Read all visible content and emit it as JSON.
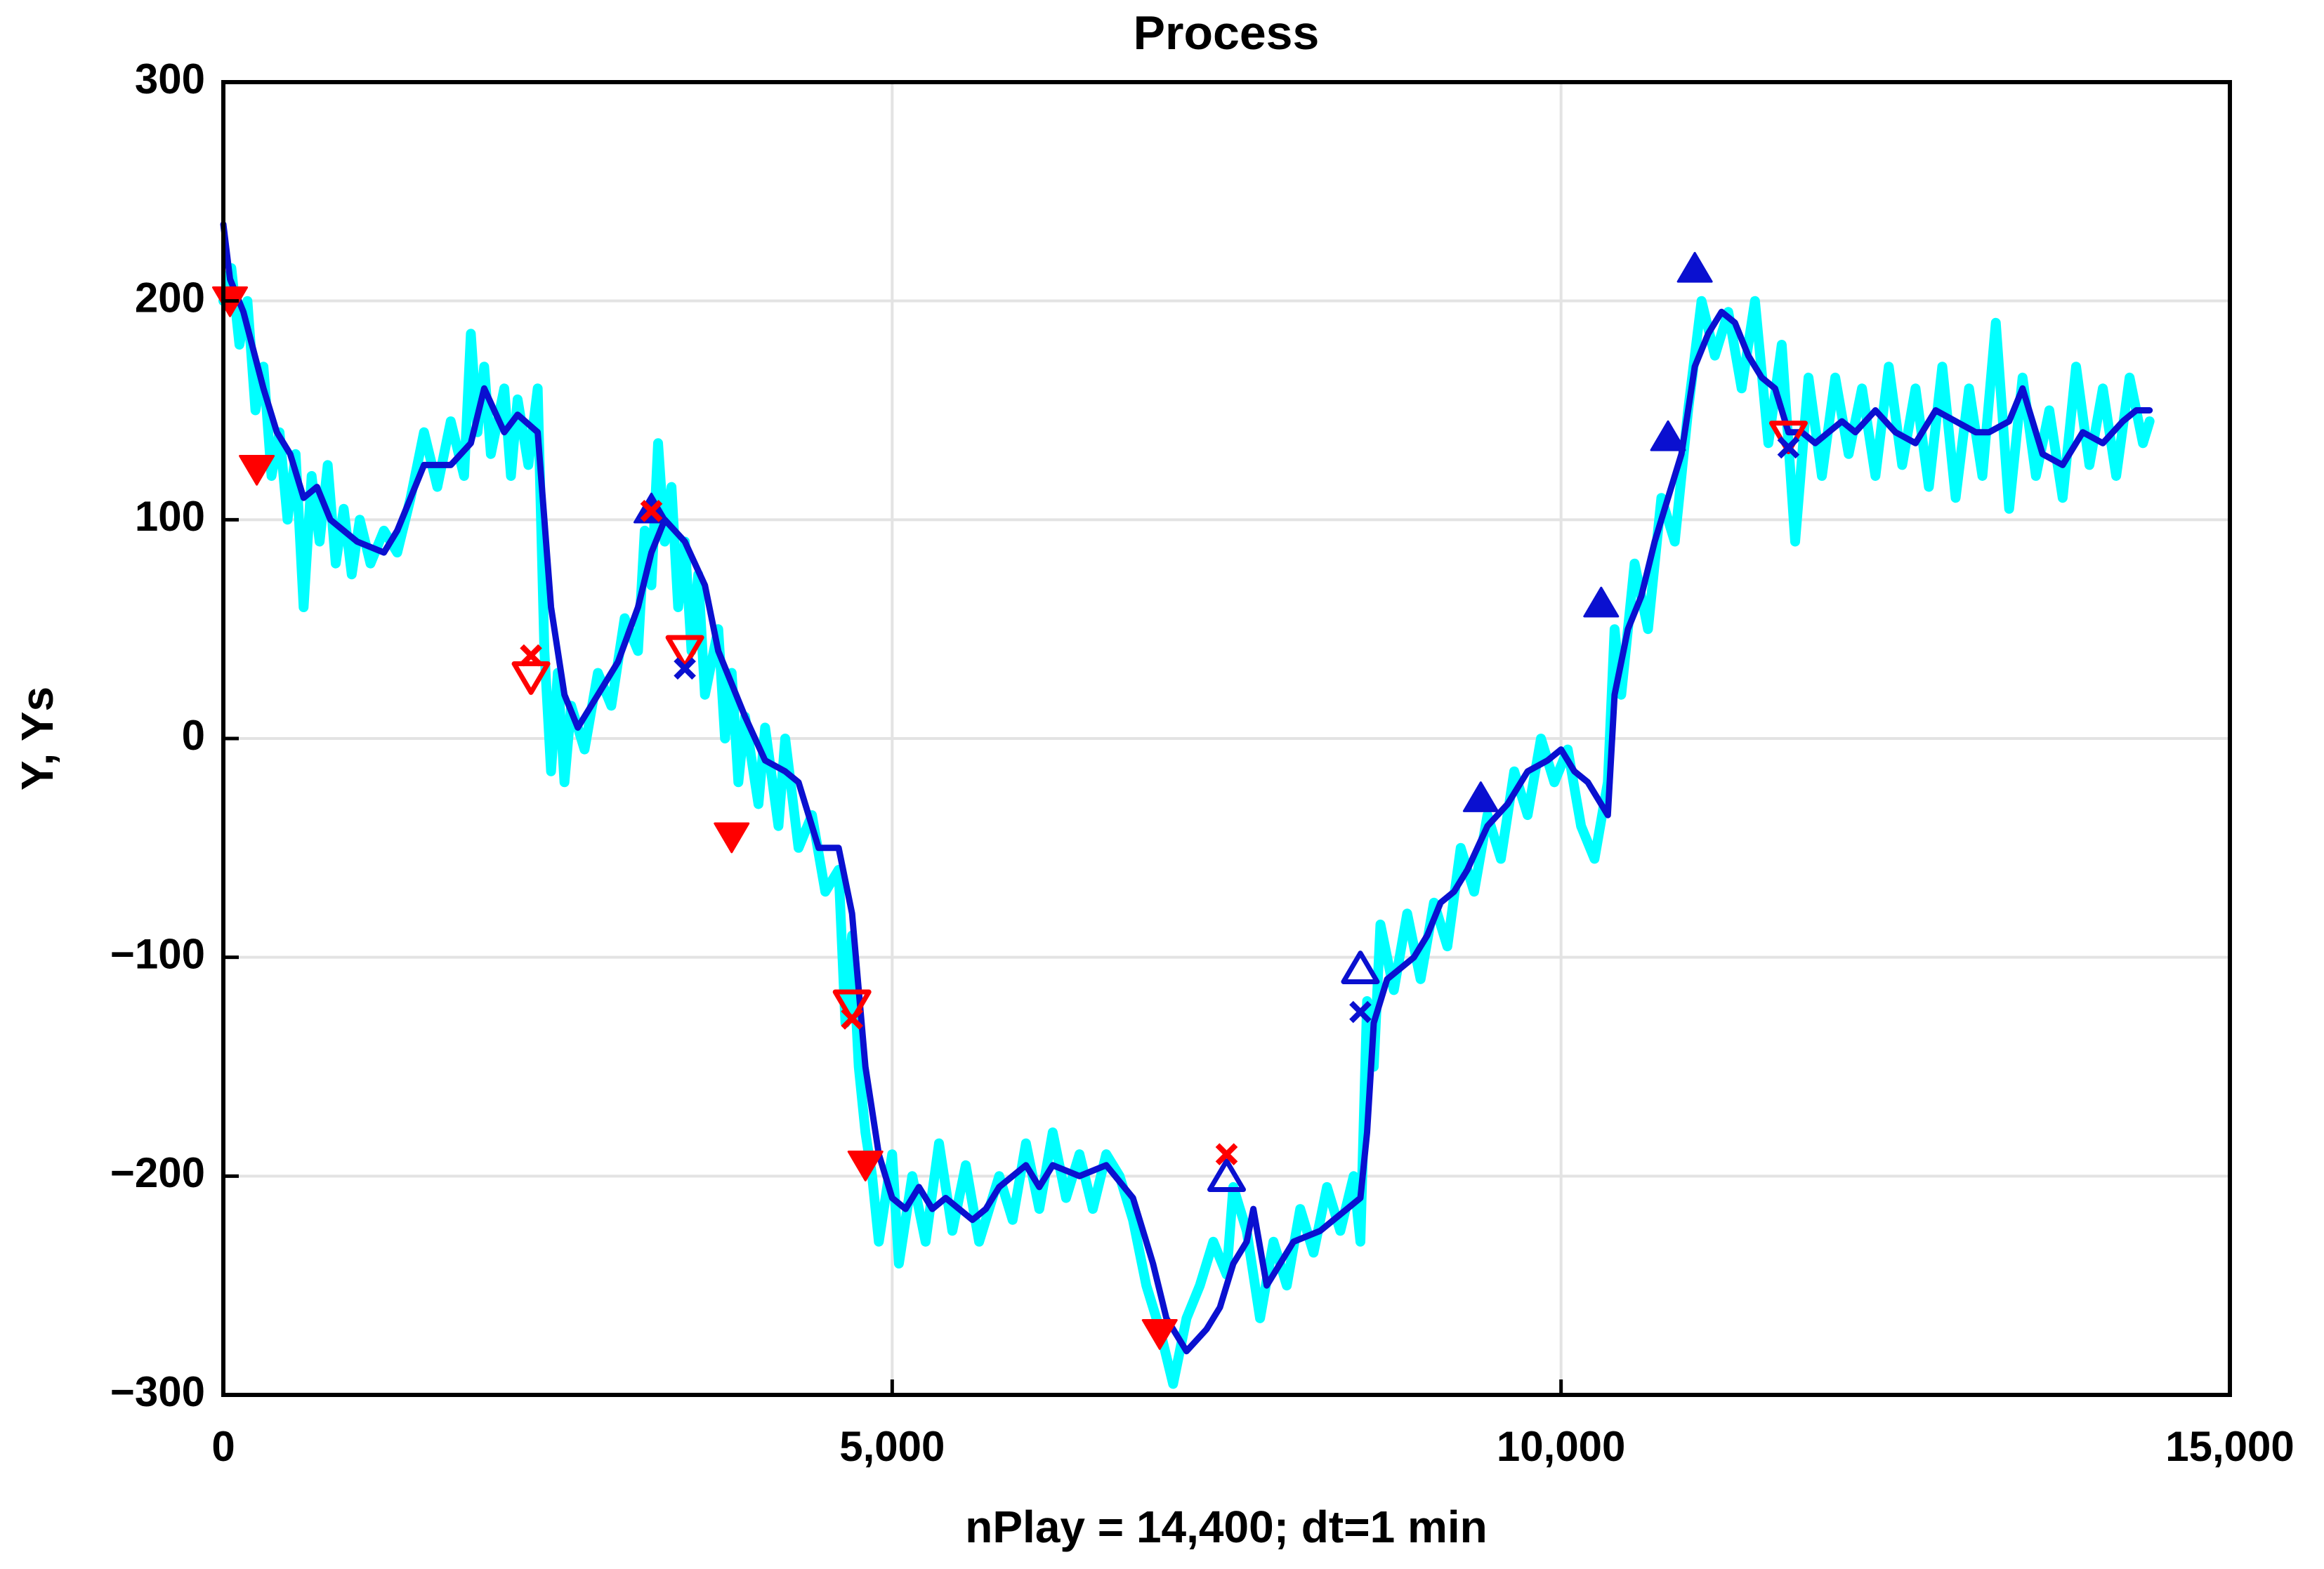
{
  "chart_data": {
    "type": "line",
    "title": "Process",
    "xlabel": "nPlay = 14,400;   dt=1 min",
    "ylabel": "Y,  Ys",
    "xlim": [
      0,
      15000
    ],
    "ylim": [
      -300,
      300
    ],
    "xticks": [
      0,
      {
        "value": 5000,
        "label": "5,000"
      },
      {
        "value": 10000,
        "label": "10,000"
      },
      {
        "value": 15000,
        "label": "15,000"
      }
    ],
    "yticks": [
      300,
      200,
      100,
      0,
      {
        "value": -100,
        "label": "−100"
      },
      {
        "value": -200,
        "label": "−200"
      },
      {
        "value": -300,
        "label": "−300"
      }
    ],
    "grid": true,
    "series": [
      {
        "color": "#00ffff",
        "marker": "line",
        "x": [
          0,
          60,
          120,
          180,
          240,
          300,
          360,
          420,
          480,
          540,
          600,
          660,
          720,
          780,
          840,
          900,
          960,
          1020,
          1100,
          1200,
          1300,
          1400,
          1500,
          1600,
          1700,
          1800,
          1850,
          1900,
          1950,
          2000,
          2100,
          2150,
          2200,
          2280,
          2350,
          2400,
          2450,
          2500,
          2550,
          2600,
          2700,
          2800,
          2900,
          3000,
          3100,
          3150,
          3200,
          3250,
          3300,
          3350,
          3400,
          3450,
          3500,
          3550,
          3600,
          3700,
          3750,
          3800,
          3850,
          3900,
          4000,
          4050,
          4150,
          4200,
          4300,
          4400,
          4500,
          4600,
          4650,
          4700,
          4750,
          4800,
          4850,
          4900,
          5000,
          5050,
          5150,
          5250,
          5350,
          5450,
          5550,
          5650,
          5800,
          5900,
          6000,
          6100,
          6200,
          6300,
          6400,
          6500,
          6600,
          6700,
          6800,
          6900,
          7000,
          7100,
          7200,
          7300,
          7400,
          7500,
          7550,
          7650,
          7750,
          7850,
          7950,
          8050,
          8150,
          8250,
          8350,
          8450,
          8500,
          8550,
          8600,
          8650,
          8750,
          8850,
          8950,
          9050,
          9150,
          9250,
          9350,
          9450,
          9550,
          9650,
          9750,
          9850,
          9950,
          10050,
          10150,
          10250,
          10350,
          10400,
          10450,
          10550,
          10650,
          10750,
          10850,
          10950,
          11050,
          11150,
          11250,
          11350,
          11450,
          11550,
          11650,
          11750,
          11850,
          11950,
          12050,
          12150,
          12250,
          12350,
          12450,
          12550,
          12650,
          12750,
          12850,
          12950,
          13050,
          13150,
          13250,
          13350,
          13450,
          13550,
          13650,
          13750,
          13850,
          13950,
          14050,
          14150,
          14250,
          14350,
          14400
        ],
        "values": [
          200,
          215,
          180,
          200,
          150,
          170,
          120,
          140,
          100,
          130,
          60,
          120,
          90,
          125,
          80,
          105,
          75,
          100,
          80,
          95,
          85,
          110,
          140,
          115,
          145,
          120,
          185,
          140,
          170,
          130,
          160,
          120,
          155,
          125,
          160,
          40,
          -15,
          30,
          -20,
          15,
          -5,
          30,
          15,
          55,
          40,
          95,
          70,
          135,
          90,
          115,
          60,
          90,
          40,
          75,
          20,
          50,
          0,
          30,
          -20,
          10,
          -30,
          5,
          -40,
          0,
          -50,
          -35,
          -70,
          -60,
          -130,
          -90,
          -150,
          -180,
          -200,
          -230,
          -190,
          -240,
          -200,
          -230,
          -185,
          -225,
          -195,
          -230,
          -200,
          -220,
          -185,
          -215,
          -180,
          -210,
          -190,
          -215,
          -190,
          -200,
          -220,
          -250,
          -270,
          -295,
          -265,
          -250,
          -230,
          -245,
          -205,
          -225,
          -265,
          -230,
          -250,
          -215,
          -235,
          -205,
          -225,
          -200,
          -230,
          -120,
          -150,
          -85,
          -115,
          -80,
          -110,
          -75,
          -95,
          -50,
          -70,
          -35,
          -55,
          -15,
          -35,
          0,
          -20,
          -5,
          -40,
          -55,
          -20,
          50,
          20,
          80,
          50,
          110,
          90,
          150,
          200,
          175,
          195,
          160,
          200,
          135,
          180,
          90,
          165,
          120,
          165,
          130,
          160,
          120,
          170,
          125,
          160,
          115,
          170,
          110,
          160,
          120,
          190,
          105,
          165,
          120,
          150,
          110,
          170,
          125,
          160,
          120,
          165,
          135,
          145
        ]
      },
      {
        "color": "#0a10d0",
        "marker": "line",
        "x": [
          0,
          50,
          150,
          300,
          400,
          500,
          600,
          700,
          800,
          900,
          1000,
          1200,
          1300,
          1500,
          1700,
          1850,
          1950,
          2100,
          2200,
          2350,
          2450,
          2550,
          2650,
          2800,
          2950,
          3100,
          3200,
          3300,
          3450,
          3600,
          3700,
          3800,
          3900,
          4050,
          4200,
          4300,
          4450,
          4600,
          4700,
          4800,
          4900,
          5000,
          5100,
          5200,
          5300,
          5400,
          5600,
          5700,
          5800,
          6000,
          6100,
          6200,
          6400,
          6600,
          6800,
          6950,
          7050,
          7200,
          7350,
          7450,
          7550,
          7650,
          7700,
          7800,
          7900,
          8000,
          8200,
          8400,
          8500,
          8550,
          8600,
          8700,
          8800,
          8900,
          9000,
          9100,
          9200,
          9300,
          9450,
          9600,
          9750,
          9900,
          10000,
          10100,
          10200,
          10300,
          10350,
          10400,
          10500,
          10600,
          10700,
          10800,
          10900,
          11000,
          11100,
          11200,
          11300,
          11400,
          11500,
          11600,
          11700,
          11800,
          11900,
          12000,
          12100,
          12200,
          12350,
          12500,
          12650,
          12800,
          12950,
          13100,
          13200,
          13350,
          13450,
          13600,
          13750,
          13900,
          14050,
          14200,
          14300,
          14400
        ],
        "values": [
          235,
          210,
          195,
          160,
          140,
          130,
          110,
          115,
          100,
          95,
          90,
          85,
          95,
          125,
          125,
          135,
          160,
          140,
          148,
          140,
          60,
          20,
          5,
          20,
          35,
          60,
          85,
          100,
          90,
          70,
          40,
          25,
          10,
          -10,
          -15,
          -20,
          -50,
          -50,
          -80,
          -150,
          -190,
          -210,
          -215,
          -205,
          -215,
          -210,
          -220,
          -215,
          -205,
          -195,
          -205,
          -195,
          -200,
          -195,
          -210,
          -240,
          -265,
          -280,
          -270,
          -260,
          -240,
          -230,
          -215,
          -250,
          -240,
          -230,
          -225,
          -215,
          -210,
          -180,
          -130,
          -110,
          -105,
          -100,
          -90,
          -75,
          -70,
          -60,
          -40,
          -30,
          -15,
          -10,
          -5,
          -15,
          -20,
          -30,
          -35,
          20,
          50,
          65,
          90,
          110,
          130,
          170,
          185,
          195,
          190,
          175,
          165,
          160,
          140,
          140,
          135,
          140,
          145,
          140,
          150,
          140,
          135,
          150,
          145,
          140,
          140,
          145,
          160,
          130,
          125,
          140,
          135,
          145,
          150,
          150
        ]
      },
      {
        "color": "#ff0000",
        "marker": "triangle-down",
        "filled": true,
        "x": [
          50,
          250,
          3800,
          4800,
          7000
        ],
        "values": [
          200,
          123,
          -45,
          -195,
          -272
        ]
      },
      {
        "color": "#ff0000",
        "marker": "triangle-down",
        "filled": false,
        "x": [
          2300,
          3450,
          4700,
          11700
        ],
        "values": [
          28,
          40,
          -122,
          138
        ]
      },
      {
        "color": "#0a10d0",
        "marker": "triangle-up",
        "filled": true,
        "x": [
          3200,
          9400,
          10300,
          10800,
          11000
        ],
        "values": [
          105,
          -27,
          62,
          138,
          215
        ]
      },
      {
        "color": "#0a10d0",
        "marker": "triangle-up",
        "filled": false,
        "x": [
          7500,
          8500
        ],
        "values": [
          -200,
          -105
        ]
      },
      {
        "color": "#ff0000",
        "marker": "cross",
        "x": [
          2300,
          3200,
          4700,
          7500
        ],
        "values": [
          38,
          104,
          -128,
          -190
        ]
      },
      {
        "color": "#0a10d0",
        "marker": "cross",
        "x": [
          3450,
          8500,
          11700
        ],
        "values": [
          32,
          -125,
          133
        ]
      }
    ]
  }
}
